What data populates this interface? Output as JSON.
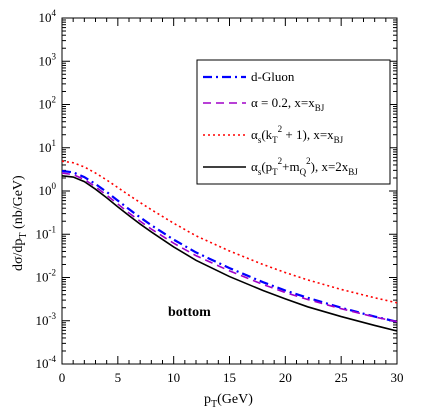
{
  "chart_data": {
    "type": "line",
    "xlabel": "p",
    "xlabel_sub": "T",
    "xlabel_unit": "(GeV)",
    "ylabel": "dσ/dp",
    "ylabel_sub": "T",
    "ylabel_unit": " (nb/GeV)",
    "xlim": [
      0,
      30
    ],
    "ylim_log10": [
      -4,
      4
    ],
    "yscale": "log",
    "grid": false,
    "x_ticks": [
      "0",
      "5",
      "10",
      "15",
      "20",
      "25",
      "30"
    ],
    "y_ticks": [
      {
        "base": "10",
        "exp": "-4"
      },
      {
        "base": "10",
        "exp": "-3"
      },
      {
        "base": "10",
        "exp": "-2"
      },
      {
        "base": "10",
        "exp": "-1"
      },
      {
        "base": "10",
        "exp": "0"
      },
      {
        "base": "10",
        "exp": "1"
      },
      {
        "base": "10",
        "exp": "2"
      },
      {
        "base": "10",
        "exp": "3"
      },
      {
        "base": "10",
        "exp": "4"
      }
    ],
    "legend_position": "top-right",
    "annotation": "bottom",
    "series": [
      {
        "id": "dgluon",
        "name": "d-Gluon",
        "color": "#0000ff",
        "dash": "dashdot",
        "x": [
          0,
          1,
          2,
          3,
          4,
          5,
          6,
          7,
          8,
          10,
          12,
          15,
          18,
          20,
          22,
          25,
          28,
          30
        ],
        "y": [
          2.9,
          2.7,
          2.1,
          1.45,
          0.95,
          0.6,
          0.38,
          0.245,
          0.162,
          0.075,
          0.038,
          0.0165,
          0.0078,
          0.005,
          0.0034,
          0.002,
          0.00125,
          0.00095
        ]
      },
      {
        "id": "alpha02",
        "name": "α = 0.2, x=x",
        "name_sub": "BJ",
        "color": "#a000c8",
        "dash": "dashed",
        "x": [
          0,
          1,
          2,
          3,
          4,
          5,
          6,
          7,
          8,
          10,
          12,
          15,
          18,
          20,
          22,
          25,
          28,
          30
        ],
        "y": [
          2.6,
          2.4,
          1.85,
          1.25,
          0.8,
          0.5,
          0.31,
          0.2,
          0.132,
          0.062,
          0.032,
          0.0142,
          0.0069,
          0.0045,
          0.0031,
          0.0019,
          0.00122,
          0.00095
        ]
      },
      {
        "id": "alphas_kt",
        "name_parts": [
          "α",
          "s",
          "(k",
          "T",
          "2",
          " + 1), x=x",
          "BJ"
        ],
        "name": "α_s(k_T^2 + 1), x=x_BJ",
        "color": "#ff0000",
        "dash": "dotted",
        "x": [
          0,
          1,
          2,
          3,
          4,
          5,
          6,
          7,
          8,
          10,
          12,
          15,
          18,
          20,
          22,
          25,
          28,
          30
        ],
        "y": [
          4.9,
          4.5,
          3.6,
          2.6,
          1.8,
          1.2,
          0.8,
          0.54,
          0.37,
          0.18,
          0.092,
          0.041,
          0.02,
          0.013,
          0.0088,
          0.0053,
          0.0034,
          0.0026
        ]
      },
      {
        "id": "alphas_pt",
        "name_parts": [
          "α",
          "s",
          "(p",
          "T",
          "2",
          "+m",
          "Q",
          "2",
          "),  x=2x",
          "BJ"
        ],
        "name": "α_s(p_T^2+m_Q^2),  x=2x_BJ",
        "color": "#000000",
        "dash": "solid",
        "x": [
          0,
          1,
          2,
          3,
          4,
          5,
          6,
          7,
          8,
          10,
          12,
          15,
          18,
          20,
          22,
          25,
          28,
          30
        ],
        "y": [
          2.25,
          2.1,
          1.65,
          1.1,
          0.7,
          0.43,
          0.27,
          0.172,
          0.113,
          0.051,
          0.025,
          0.0105,
          0.005,
          0.0032,
          0.0021,
          0.00125,
          0.00078,
          0.00058
        ]
      }
    ]
  }
}
